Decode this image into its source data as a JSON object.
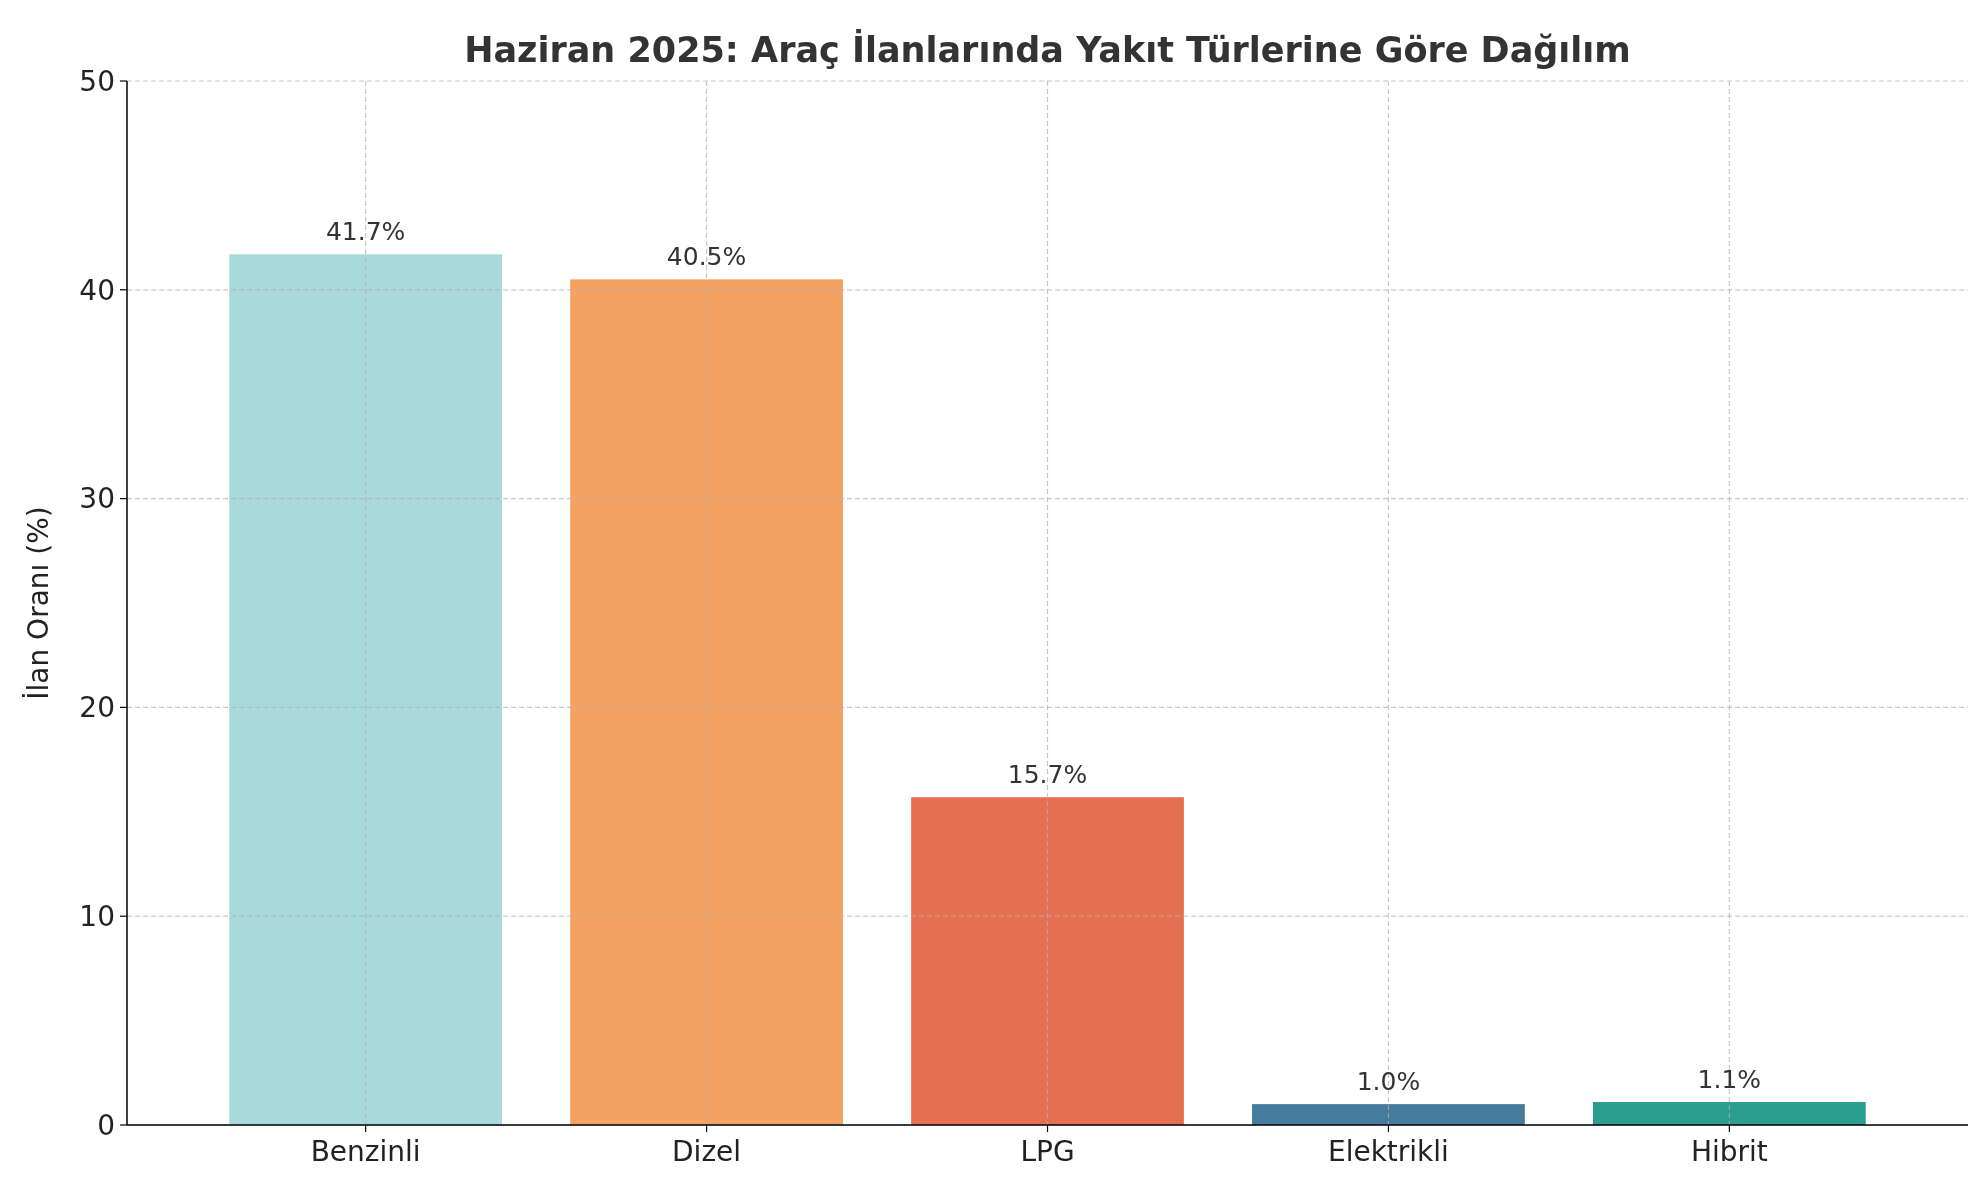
{
  "chart_data": {
    "type": "bar",
    "title": "Haziran 2025: Araç İlanlarında Yakıt Türlerine Göre Dağılım",
    "ylabel": "İlan Oranı (%)",
    "categories": [
      "Benzinli",
      "Dizel",
      "LPG",
      "Elektrikli",
      "Hibrit"
    ],
    "values": [
      41.7,
      40.5,
      15.7,
      1.0,
      1.1
    ],
    "colors": [
      "#a8dadc",
      "#f4a261",
      "#e76f51",
      "#457b9d",
      "#2a9d8f"
    ],
    "value_labels": [
      "41.7%",
      "40.5%",
      "15.7%",
      "1.0%",
      "1.1%"
    ],
    "ylim": [
      0,
      50
    ],
    "yticks": [
      0,
      10,
      20,
      30,
      40,
      50
    ],
    "grid": true
  }
}
